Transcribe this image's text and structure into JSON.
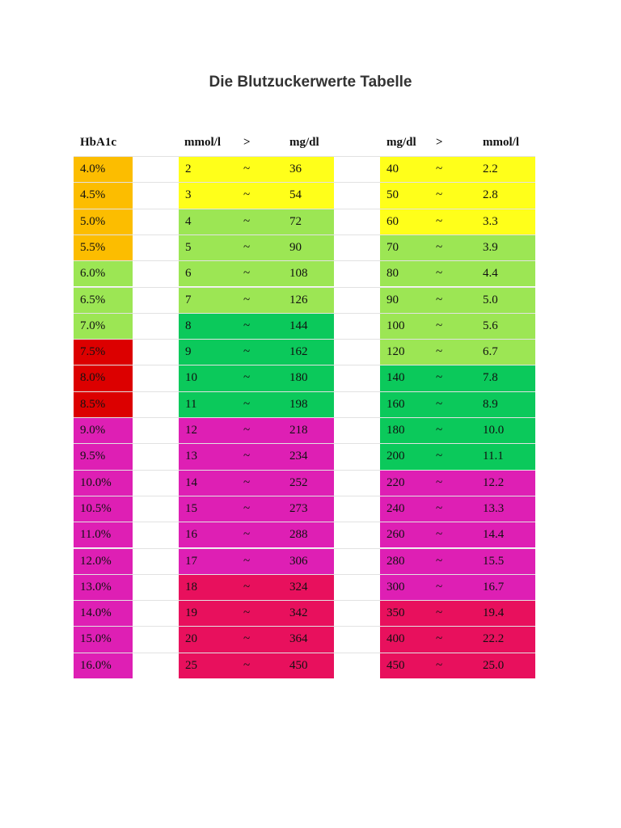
{
  "title": "Die Blutzuckerwerte Tabelle",
  "headers": {
    "hba1c": "HbA1c",
    "mmol_left": "mmol/l",
    "arrow_left": ">",
    "mgdl_left": "mg/dl",
    "mgdl_right": "mg/dl",
    "arrow_right": ">",
    "mmol_right": "mmol/l"
  },
  "colors": {
    "orange": "#fcbd00",
    "yellow": "#ffff1a",
    "lightgreen": "#9ce654",
    "green": "#0bc95b",
    "red": "#dc0000",
    "magenta": "#de1fb4",
    "crimson": "#e8105d"
  },
  "rows": [
    {
      "hba1c": "4.0%",
      "hba1c_color": "orange",
      "mmol": "2",
      "sep": "~",
      "mgdl": "36",
      "mid_color": "yellow",
      "mgdl_r": "40",
      "sep_r": "~",
      "mmol_r": "2.2",
      "right_color": "yellow"
    },
    {
      "hba1c": "4.5%",
      "hba1c_color": "orange",
      "mmol": "3",
      "sep": "~",
      "mgdl": "54",
      "mid_color": "yellow",
      "mgdl_r": "50",
      "sep_r": "~",
      "mmol_r": "2.8",
      "right_color": "yellow"
    },
    {
      "hba1c": "5.0%",
      "hba1c_color": "orange",
      "mmol": "4",
      "sep": "~",
      "mgdl": "72",
      "mid_color": "lightgreen",
      "mgdl_r": "60",
      "sep_r": "~",
      "mmol_r": "3.3",
      "right_color": "yellow"
    },
    {
      "hba1c": "5.5%",
      "hba1c_color": "orange",
      "mmol": "5",
      "sep": "~",
      "mgdl": "90",
      "mid_color": "lightgreen",
      "mgdl_r": "70",
      "sep_r": "~",
      "mmol_r": "3.9",
      "right_color": "lightgreen"
    },
    {
      "hba1c": "6.0%",
      "hba1c_color": "lightgreen",
      "mmol": "6",
      "sep": "~",
      "mgdl": "108",
      "mid_color": "lightgreen",
      "mgdl_r": "80",
      "sep_r": "~",
      "mmol_r": "4.4",
      "right_color": "lightgreen"
    },
    {
      "hba1c": "6.5%",
      "hba1c_color": "lightgreen",
      "mmol": "7",
      "sep": "~",
      "mgdl": "126",
      "mid_color": "lightgreen",
      "mgdl_r": "90",
      "sep_r": "~",
      "mmol_r": "5.0",
      "right_color": "lightgreen"
    },
    {
      "hba1c": "7.0%",
      "hba1c_color": "lightgreen",
      "mmol": "8",
      "sep": "~",
      "mgdl": "144",
      "mid_color": "green",
      "mgdl_r": "100",
      "sep_r": "~",
      "mmol_r": "5.6",
      "right_color": "lightgreen"
    },
    {
      "hba1c": "7.5%",
      "hba1c_color": "red",
      "mmol": "9",
      "sep": "~",
      "mgdl": "162",
      "mid_color": "green",
      "mgdl_r": "120",
      "sep_r": "~",
      "mmol_r": "6.7",
      "right_color": "lightgreen"
    },
    {
      "hba1c": "8.0%",
      "hba1c_color": "red",
      "mmol": "10",
      "sep": "~",
      "mgdl": "180",
      "mid_color": "green",
      "mgdl_r": "140",
      "sep_r": "~",
      "mmol_r": "7.8",
      "right_color": "green"
    },
    {
      "hba1c": "8.5%",
      "hba1c_color": "red",
      "mmol": "11",
      "sep": "~",
      "mgdl": "198",
      "mid_color": "green",
      "mgdl_r": "160",
      "sep_r": "~",
      "mmol_r": "8.9",
      "right_color": "green"
    },
    {
      "hba1c": "9.0%",
      "hba1c_color": "magenta",
      "mmol": "12",
      "sep": "~",
      "mgdl": "218",
      "mid_color": "magenta",
      "mgdl_r": "180",
      "sep_r": "~",
      "mmol_r": "10.0",
      "right_color": "green"
    },
    {
      "hba1c": "9.5%",
      "hba1c_color": "magenta",
      "mmol": "13",
      "sep": "~",
      "mgdl": "234",
      "mid_color": "magenta",
      "mgdl_r": "200",
      "sep_r": "~",
      "mmol_r": "11.1",
      "right_color": "green"
    },
    {
      "hba1c": "10.0%",
      "hba1c_color": "magenta",
      "mmol": "14",
      "sep": "~",
      "mgdl": "252",
      "mid_color": "magenta",
      "mgdl_r": "220",
      "sep_r": "~",
      "mmol_r": "12.2",
      "right_color": "magenta"
    },
    {
      "hba1c": "10.5%",
      "hba1c_color": "magenta",
      "mmol": "15",
      "sep": "~",
      "mgdl": "273",
      "mid_color": "magenta",
      "mgdl_r": "240",
      "sep_r": "~",
      "mmol_r": "13.3",
      "right_color": "magenta"
    },
    {
      "hba1c": "11.0%",
      "hba1c_color": "magenta",
      "mmol": "16",
      "sep": "~",
      "mgdl": "288",
      "mid_color": "magenta",
      "mgdl_r": "260",
      "sep_r": "~",
      "mmol_r": "14.4",
      "right_color": "magenta"
    },
    {
      "hba1c": "12.0%",
      "hba1c_color": "magenta",
      "mmol": "17",
      "sep": "~",
      "mgdl": "306",
      "mid_color": "magenta",
      "mgdl_r": "280",
      "sep_r": "~",
      "mmol_r": "15.5",
      "right_color": "magenta"
    },
    {
      "hba1c": "13.0%",
      "hba1c_color": "magenta",
      "mmol": "18",
      "sep": "~",
      "mgdl": "324",
      "mid_color": "crimson",
      "mgdl_r": "300",
      "sep_r": "~",
      "mmol_r": "16.7",
      "right_color": "magenta"
    },
    {
      "hba1c": "14.0%",
      "hba1c_color": "magenta",
      "mmol": "19",
      "sep": "~",
      "mgdl": "342",
      "mid_color": "crimson",
      "mgdl_r": "350",
      "sep_r": "~",
      "mmol_r": "19.4",
      "right_color": "crimson"
    },
    {
      "hba1c": "15.0%",
      "hba1c_color": "magenta",
      "mmol": "20",
      "sep": "~",
      "mgdl": "364",
      "mid_color": "crimson",
      "mgdl_r": "400",
      "sep_r": "~",
      "mmol_r": "22.2",
      "right_color": "crimson"
    },
    {
      "hba1c": "16.0%",
      "hba1c_color": "magenta",
      "mmol": "25",
      "sep": "~",
      "mgdl": "450",
      "mid_color": "crimson",
      "mgdl_r": "450",
      "sep_r": "~",
      "mmol_r": "25.0",
      "right_color": "crimson"
    }
  ]
}
